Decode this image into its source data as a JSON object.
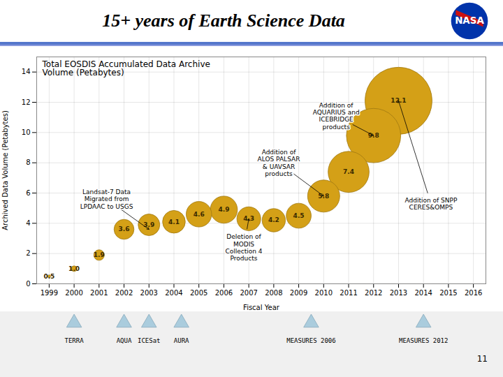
{
  "chart_data": {
    "type": "bubble",
    "title": "15+ years of Earth Science Data",
    "subtitle": "Total EOSDIS Accumulated Data Archive\nVolume (Petabytes)",
    "xlabel": "Fiscal Year",
    "ylabel": "Archived Data Volume (Petabytes)",
    "x": [
      1999,
      2000,
      2001,
      2002,
      2003,
      2004,
      2005,
      2006,
      2007,
      2008,
      2009,
      2010,
      2011,
      2012,
      2013
    ],
    "values": [
      0.5,
      1.0,
      1.9,
      3.6,
      3.9,
      4.1,
      4.6,
      4.9,
      4.3,
      4.2,
      4.5,
      5.8,
      7.4,
      9.8,
      12.1
    ],
    "value_labels": [
      "0.5",
      "1.0",
      "1.9",
      "3.6",
      "3.9",
      "4.1",
      "4.6",
      "4.9",
      "4.3",
      "4.2",
      "4.5",
      "5.8",
      "7.4",
      "9.8",
      "12.1"
    ],
    "data_labels": true,
    "color": "#D4A017",
    "xlim": [
      1998.5,
      2016.5
    ],
    "ylim": [
      0,
      15
    ],
    "xticks": [
      1999,
      2000,
      2001,
      2002,
      2003,
      2004,
      2005,
      2006,
      2007,
      2008,
      2009,
      2010,
      2011,
      2012,
      2013,
      2014,
      2015,
      2016
    ],
    "yticks": [
      0,
      2,
      4,
      6,
      8,
      10,
      12,
      14
    ],
    "grid": true,
    "annotations": [
      {
        "text": "Landsat-7 Data\nMigrated from\nLPDAAC to USGS",
        "x": 2003,
        "y": 3.6,
        "text_x": 2001.3,
        "text_y": 5.6
      },
      {
        "text": "Addition of\nALOS PALSAR\n& UAVSAR\nproducts",
        "x": 2010,
        "y": 5.8,
        "text_x": 2008.2,
        "text_y": 8.0
      },
      {
        "text": "Addition of\nAQUARIUS and\nICEBRIDGE\nproducts",
        "x": 2012,
        "y": 9.8,
        "text_x": 2010.5,
        "text_y": 11.1
      },
      {
        "text": "Addition of SNPP\nCERES&OMPS",
        "x": 2013,
        "y": 12.1,
        "text_x": 2014.3,
        "text_y": 5.3
      },
      {
        "text": "Deletion of\nMODIS\nCollection 4\nProducts",
        "x": 2007,
        "y": 4.3,
        "text_x": 2006.8,
        "text_y": 2.4
      }
    ],
    "missions": [
      {
        "year": 2000,
        "label": "TERRA"
      },
      {
        "year": 2002,
        "label": "AQUA"
      },
      {
        "year": 2003,
        "label": "ICESat"
      },
      {
        "year": 2004.3,
        "label": "AURA"
      },
      {
        "year": 2009.5,
        "label": "MEASURES 2006"
      },
      {
        "year": 2014,
        "label": "MEASURES 2012"
      }
    ],
    "logo": "NASA",
    "page_number": "11"
  }
}
